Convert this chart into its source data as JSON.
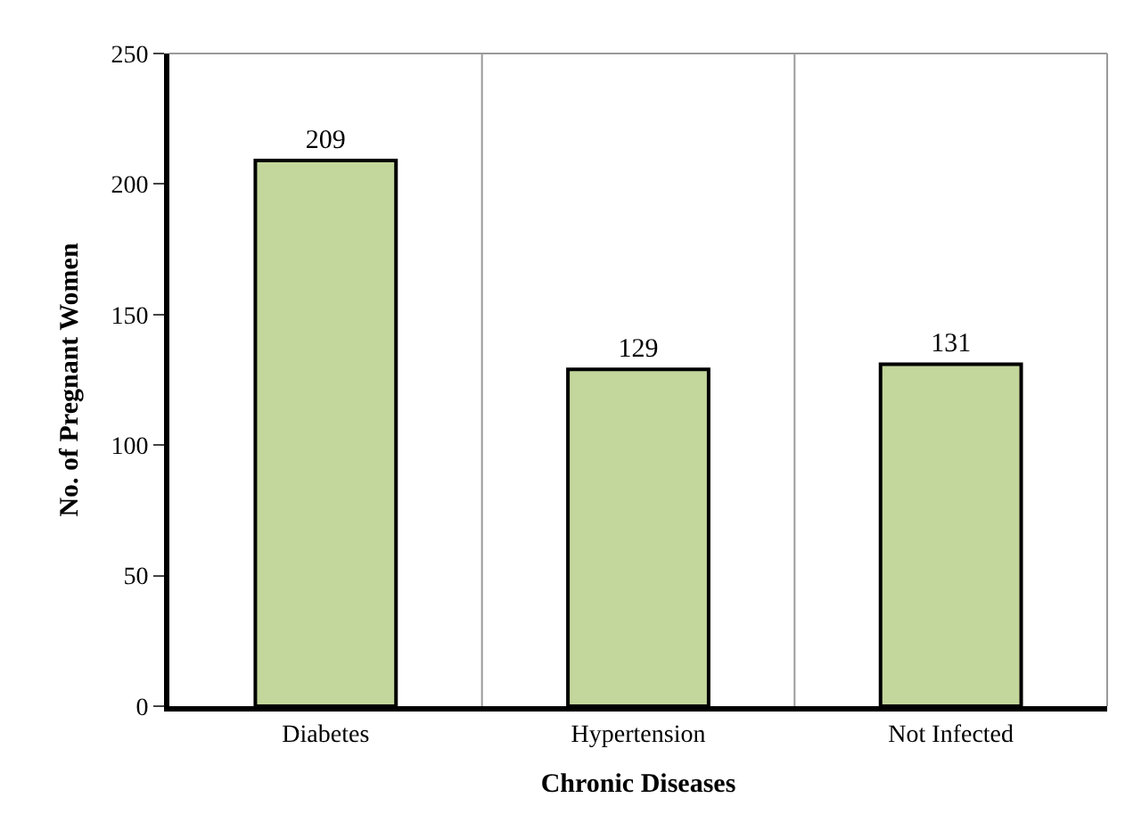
{
  "chart_data": {
    "type": "bar",
    "xlabel": "Chronic Diseases",
    "ylabel": "No. of Pregnant Women",
    "categories": [
      "Diabetes",
      "Hypertension",
      "Not Infected"
    ],
    "values": [
      209,
      129,
      131
    ],
    "color": "#c3d69b",
    "ylim": [
      0,
      250
    ],
    "yticks": [
      0,
      50,
      100,
      150,
      200,
      250
    ],
    "grid": "x",
    "data_labels": true
  }
}
